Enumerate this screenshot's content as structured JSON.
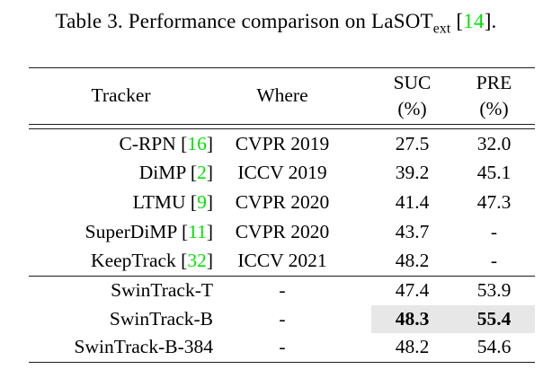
{
  "caption": {
    "before": "Table 3. Performance comparison on LaSOT",
    "subscript": "ext",
    "mid": " [",
    "cite": "14",
    "after": "]."
  },
  "colors": {
    "citation_green": "#00e400",
    "highlight_gray": "#e7e7e7",
    "text": "#000000",
    "rule": "#1c1c1c"
  },
  "table": {
    "headers": {
      "tracker": "Tracker",
      "where": "Where",
      "suc_line1": "SUC",
      "suc_line2": "(%)",
      "pre_line1": "PRE",
      "pre_line2": "(%)"
    },
    "groups": [
      {
        "rows": [
          {
            "tracker": "C-RPN",
            "cite": "16",
            "where": "CVPR 2019",
            "suc": "27.5",
            "pre": "32.0",
            "bold": false,
            "highlight": false
          },
          {
            "tracker": "DiMP",
            "cite": "2",
            "where": "ICCV 2019",
            "suc": "39.2",
            "pre": "45.1",
            "bold": false,
            "highlight": false
          },
          {
            "tracker": "LTMU",
            "cite": "9",
            "where": "CVPR 2020",
            "suc": "41.4",
            "pre": "47.3",
            "bold": false,
            "highlight": false
          },
          {
            "tracker": "SuperDiMP",
            "cite": "11",
            "where": "CVPR 2020",
            "suc": "43.7",
            "pre": "-",
            "bold": false,
            "highlight": false
          },
          {
            "tracker": "KeepTrack",
            "cite": "32",
            "where": "ICCV 2021",
            "suc": "48.2",
            "pre": "-",
            "bold": false,
            "highlight": false
          }
        ]
      },
      {
        "rows": [
          {
            "tracker": "SwinTrack-T",
            "cite": null,
            "where": "-",
            "suc": "47.4",
            "pre": "53.9",
            "bold": false,
            "highlight": false
          },
          {
            "tracker": "SwinTrack-B",
            "cite": null,
            "where": "-",
            "suc": "48.3",
            "pre": "55.4",
            "bold": true,
            "highlight": true
          },
          {
            "tracker": "SwinTrack-B-384",
            "cite": null,
            "where": "-",
            "suc": "48.2",
            "pre": "54.6",
            "bold": false,
            "highlight": false
          }
        ]
      }
    ]
  }
}
